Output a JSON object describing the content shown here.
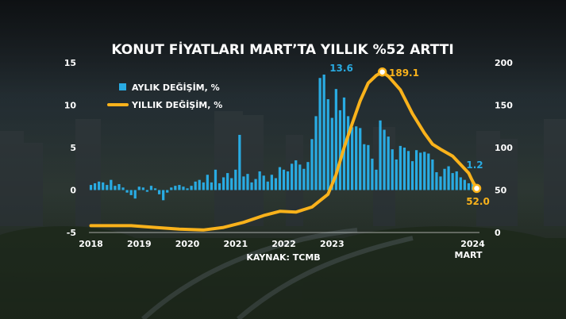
{
  "chart_data": {
    "type": "bar+line",
    "title": "KONUT FİYATLARI MART’TA YILLIK %52 ARTTI",
    "source": "KAYNAK: TCMB",
    "x_ticks": [
      "2018",
      "2019",
      "2020",
      "2021",
      "2022",
      "2023",
      "2024"
    ],
    "x_tick_sub": "MART",
    "left_axis": {
      "ticks": [
        "15",
        "10",
        "5",
        "0",
        "-5"
      ],
      "min": -5,
      "max": 15
    },
    "right_axis": {
      "ticks": [
        "200",
        "150",
        "100",
        "50",
        "0"
      ],
      "min": 0,
      "max": 200
    },
    "legend_placement": "top-left",
    "colors": {
      "bars": "#29abe2",
      "line": "#f9b21b",
      "title": "#ffffff",
      "text": "#ffffff"
    },
    "series": [
      {
        "name": "AYLIK DEĞİŞİM, %",
        "type": "bar",
        "axis": "left",
        "color": "#29abe2",
        "last_label": "1.2",
        "peak_label": "13.6",
        "values": [
          0.6,
          0.8,
          1.0,
          0.9,
          0.6,
          1.2,
          0.5,
          0.7,
          0.3,
          -0.3,
          -0.6,
          -1.0,
          0.4,
          0.3,
          -0.2,
          0.5,
          0.2,
          -0.5,
          -1.2,
          -0.3,
          0.3,
          0.5,
          0.6,
          0.4,
          0.2,
          0.5,
          1.0,
          1.2,
          0.9,
          1.8,
          0.9,
          2.4,
          0.8,
          1.5,
          2.0,
          1.4,
          2.4,
          6.5,
          1.6,
          1.9,
          0.9,
          1.3,
          2.2,
          1.7,
          1.0,
          1.8,
          1.4,
          2.7,
          2.4,
          2.2,
          3.1,
          3.5,
          3.0,
          2.5,
          3.3,
          6.0,
          8.7,
          13.2,
          13.6,
          10.7,
          8.5,
          11.9,
          9.4,
          10.9,
          8.7,
          7.4,
          7.5,
          7.3,
          5.4,
          5.3,
          3.7,
          2.4,
          8.2,
          7.1,
          6.3,
          4.8,
          3.6,
          5.2,
          5.0,
          4.6,
          3.4,
          4.7,
          4.4,
          4.5,
          4.3,
          3.6,
          2.1,
          1.6,
          2.5,
          2.8,
          2.0,
          2.2,
          1.5,
          1.2,
          0.8,
          1.2
        ]
      },
      {
        "name": "YILLIK DEĞİŞİM, %",
        "type": "line",
        "axis": "right",
        "color": "#f9b21b",
        "peak_label": "189.1",
        "last_label": "52.0",
        "points": [
          [
            0,
            8
          ],
          [
            5,
            8
          ],
          [
            10,
            8
          ],
          [
            16,
            6
          ],
          [
            22,
            4
          ],
          [
            28,
            3
          ],
          [
            33,
            6
          ],
          [
            38,
            12
          ],
          [
            43,
            20
          ],
          [
            47,
            25
          ],
          [
            51,
            24
          ],
          [
            55,
            30
          ],
          [
            59,
            45
          ],
          [
            61,
            68
          ],
          [
            63,
            100
          ],
          [
            65,
            128
          ],
          [
            67,
            155
          ],
          [
            69,
            176
          ],
          [
            71,
            185
          ],
          [
            72.5,
            189.1
          ],
          [
            74,
            184
          ],
          [
            77,
            168
          ],
          [
            80,
            140
          ],
          [
            83,
            117
          ],
          [
            85,
            104
          ],
          [
            87,
            98
          ],
          [
            90,
            90
          ],
          [
            92,
            80
          ],
          [
            94,
            70
          ],
          [
            95,
            60
          ],
          [
            96,
            52
          ]
        ]
      }
    ]
  }
}
